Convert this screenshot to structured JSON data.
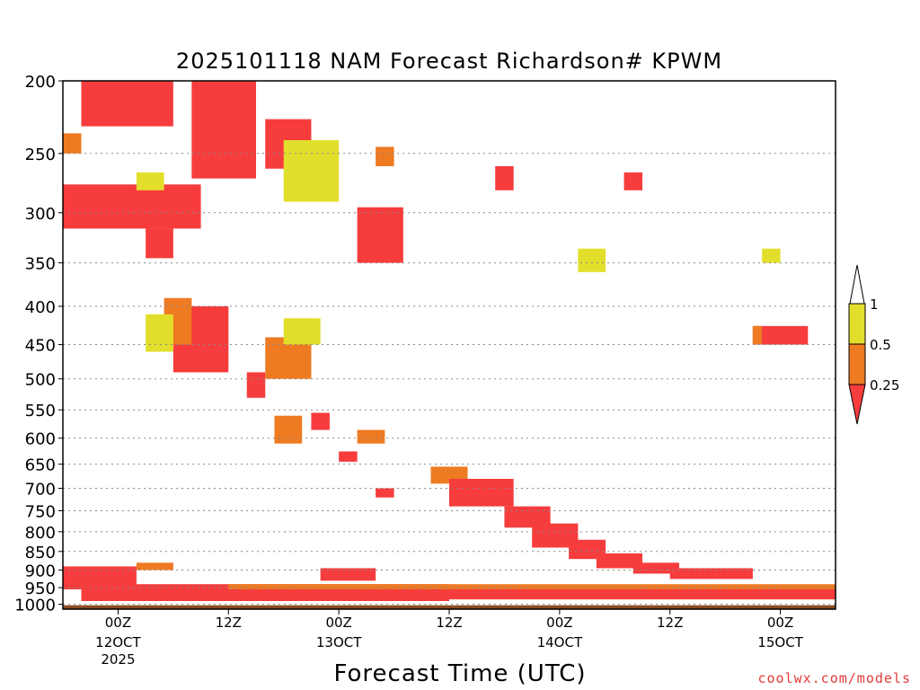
{
  "chart_data": {
    "type": "heatmap",
    "title": "2025101118 NAM Forecast Richardson# KPWM",
    "xlabel": "Forecast Time (UTC)",
    "ylabel": "",
    "y_axis": {
      "scale": "log-pressure",
      "unit": "hPa",
      "range": [
        1000,
        200
      ],
      "ticks": [
        200,
        250,
        300,
        350,
        400,
        450,
        500,
        550,
        600,
        650,
        700,
        750,
        800,
        850,
        900,
        950,
        1000
      ],
      "gridlines": true
    },
    "x_axis": {
      "range": [
        "2025-10-11T18Z",
        "2025-10-15T06Z"
      ],
      "ticks": [
        {
          "time": "2025-10-12T00Z",
          "label": "00Z",
          "sub": "12OCT",
          "sub2": "2025"
        },
        {
          "time": "2025-10-12T12Z",
          "label": "12Z",
          "sub": "",
          "sub2": ""
        },
        {
          "time": "2025-10-13T00Z",
          "label": "00Z",
          "sub": "13OCT",
          "sub2": ""
        },
        {
          "time": "2025-10-13T12Z",
          "label": "12Z",
          "sub": "",
          "sub2": ""
        },
        {
          "time": "2025-10-14T00Z",
          "label": "00Z",
          "sub": "14OCT",
          "sub2": ""
        },
        {
          "time": "2025-10-14T12Z",
          "label": "12Z",
          "sub": "",
          "sub2": ""
        },
        {
          "time": "2025-10-15T00Z",
          "label": "00Z",
          "sub": "15OCT",
          "sub2": ""
        }
      ]
    },
    "legend": {
      "placement": "right",
      "bins": [
        {
          "label": "0.25",
          "range": [
            0,
            0.25
          ],
          "color": "#f63c3c"
        },
        {
          "label": "0.5",
          "range": [
            0.25,
            0.5
          ],
          "color": "#ee7a22"
        },
        {
          "label": "1",
          "range": [
            0.5,
            1
          ],
          "color": "#e2df2c"
        }
      ]
    },
    "ground_color": "#8b4a22",
    "regions": [
      {
        "class": "red",
        "t": [
          "2025-10-11T20Z",
          "2025-10-12T06Z"
        ],
        "p": [
          200,
          230
        ]
      },
      {
        "class": "red",
        "t": [
          "2025-10-12T08Z",
          "2025-10-12T15Z"
        ],
        "p": [
          200,
          270
        ]
      },
      {
        "class": "red",
        "t": [
          "2025-10-11T18Z",
          "2025-10-12T09Z"
        ],
        "p": [
          275,
          315
        ]
      },
      {
        "class": "red",
        "t": [
          "2025-10-12T03Z",
          "2025-10-12T06Z"
        ],
        "p": [
          315,
          345
        ]
      },
      {
        "class": "orange",
        "t": [
          "2025-10-11T18Z",
          "2025-10-11T20Z"
        ],
        "p": [
          235,
          250
        ]
      },
      {
        "class": "yellow",
        "t": [
          "2025-10-12T02Z",
          "2025-10-12T05Z"
        ],
        "p": [
          265,
          280
        ]
      },
      {
        "class": "red",
        "t": [
          "2025-10-12T16Z",
          "2025-10-12T21Z"
        ],
        "p": [
          225,
          262
        ]
      },
      {
        "class": "yellow",
        "t": [
          "2025-10-12T18Z",
          "2025-10-13T00Z"
        ],
        "p": [
          240,
          290
        ]
      },
      {
        "class": "red",
        "t": [
          "2025-10-13T02Z",
          "2025-10-13T07Z"
        ],
        "p": [
          295,
          350
        ]
      },
      {
        "class": "orange",
        "t": [
          "2025-10-13T04Z",
          "2025-10-13T06Z"
        ],
        "p": [
          245,
          260
        ]
      },
      {
        "class": "red",
        "t": [
          "2025-10-12T06Z",
          "2025-10-12T12Z"
        ],
        "p": [
          400,
          490
        ]
      },
      {
        "class": "orange",
        "t": [
          "2025-10-12T05Z",
          "2025-10-12T08Z"
        ],
        "p": [
          390,
          450
        ]
      },
      {
        "class": "yellow",
        "t": [
          "2025-10-12T03Z",
          "2025-10-12T06Z"
        ],
        "p": [
          410,
          460
        ]
      },
      {
        "class": "orange",
        "t": [
          "2025-10-12T16Z",
          "2025-10-12T21Z"
        ],
        "p": [
          440,
          500
        ]
      },
      {
        "class": "yellow",
        "t": [
          "2025-10-12T18Z",
          "2025-10-12T22Z"
        ],
        "p": [
          415,
          450
        ]
      },
      {
        "class": "red",
        "t": [
          "2025-10-12T14Z",
          "2025-10-12T16Z"
        ],
        "p": [
          490,
          530
        ]
      },
      {
        "class": "orange",
        "t": [
          "2025-10-12T17Z",
          "2025-10-12T20Z"
        ],
        "p": [
          560,
          610
        ]
      },
      {
        "class": "red",
        "t": [
          "2025-10-12T21Z",
          "2025-10-12T23Z"
        ],
        "p": [
          555,
          585
        ]
      },
      {
        "class": "red",
        "t": [
          "2025-10-13T00Z",
          "2025-10-13T02Z"
        ],
        "p": [
          625,
          645
        ]
      },
      {
        "class": "orange",
        "t": [
          "2025-10-13T02Z",
          "2025-10-13T05Z"
        ],
        "p": [
          585,
          610
        ]
      },
      {
        "class": "red",
        "t": [
          "2025-10-13T04Z",
          "2025-10-13T06Z"
        ],
        "p": [
          700,
          720
        ]
      },
      {
        "class": "orange",
        "t": [
          "2025-10-13T10Z",
          "2025-10-13T14Z"
        ],
        "p": [
          655,
          690
        ]
      },
      {
        "class": "red",
        "t": [
          "2025-10-13T12Z",
          "2025-10-13T19Z"
        ],
        "p": [
          680,
          740
        ]
      },
      {
        "class": "red",
        "t": [
          "2025-10-13T18Z",
          "2025-10-13T23Z"
        ],
        "p": [
          740,
          790
        ]
      },
      {
        "class": "red",
        "t": [
          "2025-10-13T21Z",
          "2025-10-14T02Z"
        ],
        "p": [
          780,
          840
        ]
      },
      {
        "class": "red",
        "t": [
          "2025-10-14T01Z",
          "2025-10-14T05Z"
        ],
        "p": [
          820,
          870
        ]
      },
      {
        "class": "red",
        "t": [
          "2025-10-14T04Z",
          "2025-10-14T09Z"
        ],
        "p": [
          855,
          895
        ]
      },
      {
        "class": "red",
        "t": [
          "2025-10-14T08Z",
          "2025-10-14T13Z"
        ],
        "p": [
          880,
          910
        ]
      },
      {
        "class": "red",
        "t": [
          "2025-10-14T12Z",
          "2025-10-14T17Z"
        ],
        "p": [
          895,
          925
        ]
      },
      {
        "class": "red",
        "t": [
          "2025-10-14T17Z",
          "2025-10-14T21Z"
        ],
        "p": [
          895,
          925
        ]
      },
      {
        "class": "red",
        "t": [
          "2025-10-13T17Z",
          "2025-10-13T19Z"
        ],
        "p": [
          260,
          280
        ]
      },
      {
        "class": "red",
        "t": [
          "2025-10-14T07Z",
          "2025-10-14T09Z"
        ],
        "p": [
          265,
          280
        ]
      },
      {
        "class": "red",
        "t": [
          "2025-10-14T21Z",
          "2025-10-15T03Z"
        ],
        "p": [
          425,
          450
        ]
      },
      {
        "class": "orange",
        "t": [
          "2025-10-14T21Z",
          "2025-10-14T22Z"
        ],
        "p": [
          425,
          450
        ]
      },
      {
        "class": "yellow",
        "t": [
          "2025-10-14T02Z",
          "2025-10-14T05Z"
        ],
        "p": [
          335,
          360
        ]
      },
      {
        "class": "yellow",
        "t": [
          "2025-10-14T22Z",
          "2025-10-15T00Z"
        ],
        "p": [
          335,
          350
        ]
      },
      {
        "class": "red",
        "t": [
          "2025-10-11T18Z",
          "2025-10-12T02Z"
        ],
        "p": [
          890,
          955
        ]
      },
      {
        "class": "orange",
        "t": [
          "2025-10-12T02Z",
          "2025-10-12T06Z"
        ],
        "p": [
          880,
          900
        ]
      },
      {
        "class": "red",
        "t": [
          "2025-10-11T20Z",
          "2025-10-13T12Z"
        ],
        "p": [
          940,
          990
        ]
      },
      {
        "class": "red",
        "t": [
          "2025-10-13T12Z",
          "2025-10-15T06Z"
        ],
        "p": [
          950,
          985
        ]
      },
      {
        "class": "orange",
        "t": [
          "2025-10-12T12Z",
          "2025-10-15T06Z"
        ],
        "p": [
          940,
          955
        ]
      },
      {
        "class": "red",
        "t": [
          "2025-10-12T22Z",
          "2025-10-13T04Z"
        ],
        "p": [
          895,
          930
        ]
      }
    ]
  },
  "credit": "coolwx.com/models"
}
